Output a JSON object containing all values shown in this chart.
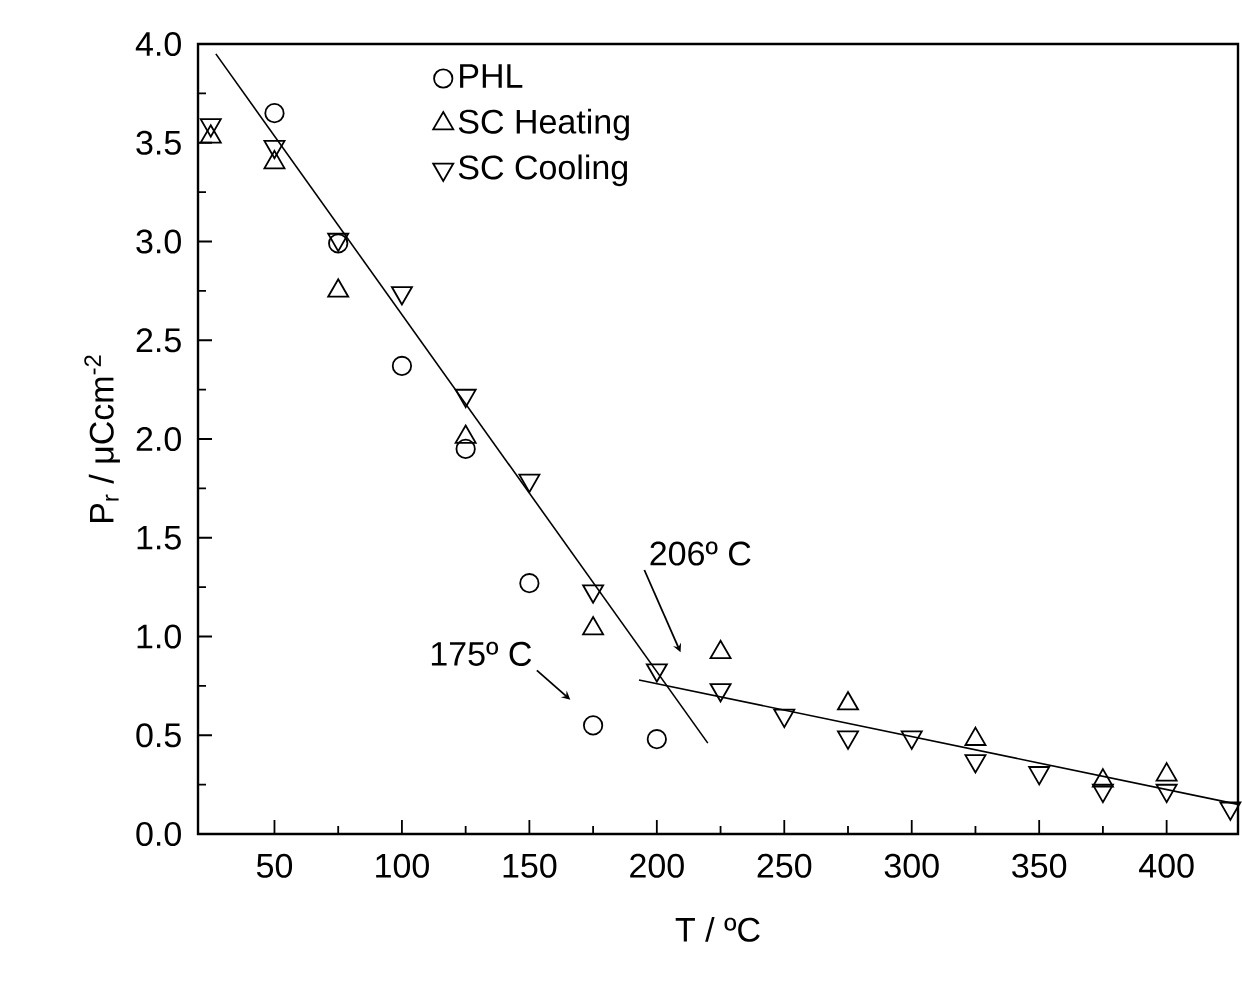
{
  "chart_data": {
    "type": "scatter",
    "xlabel": "T / ºC",
    "ylabel": "P$_{r}$ / μCcm$^{-2}$",
    "xlim": [
      20,
      428
    ],
    "xticks": [
      50,
      100,
      150,
      200,
      250,
      300,
      350,
      400
    ],
    "ylim": [
      0,
      4
    ],
    "yticks": [
      {
        "value": 0,
        "label": "0.0"
      },
      {
        "value": 0.5,
        "label": "0.5"
      },
      {
        "value": 1,
        "label": "1.0"
      },
      {
        "value": 1.5,
        "label": "1.5"
      },
      {
        "value": 2,
        "label": "2.0"
      },
      {
        "value": 2.5,
        "label": "2.5"
      },
      {
        "value": 3,
        "label": "3.0"
      },
      {
        "value": 3.5,
        "label": "3.5"
      },
      {
        "value": 4,
        "label": "4.0"
      }
    ],
    "legend": "top",
    "grid": false,
    "series": [
      {
        "name": "PHL",
        "color": "#000000",
        "marker": "circle",
        "x": [
          50,
          75,
          100,
          125,
          150,
          175,
          200
        ],
        "values": [
          3.65,
          2.99,
          2.37,
          1.95,
          1.27,
          0.55,
          0.48
        ]
      },
      {
        "name": "SC Heating",
        "color": "#000000",
        "marker": "triangle",
        "x": [
          25,
          50,
          75,
          125,
          175,
          225,
          275,
          325,
          375,
          400
        ],
        "values": [
          3.53,
          3.4,
          2.75,
          2.01,
          1.04,
          0.92,
          0.66,
          0.48,
          0.27,
          0.3
        ]
      },
      {
        "name": "SC Cooling",
        "color": "#000000",
        "marker": "triangle_down",
        "x": [
          25,
          50,
          75,
          100,
          125,
          150,
          175,
          200,
          225,
          250,
          275,
          300,
          325,
          350,
          375,
          400,
          425
        ],
        "values": [
          3.59,
          3.48,
          3.01,
          2.74,
          2.22,
          1.79,
          1.23,
          0.83,
          0.73,
          0.6,
          0.49,
          0.49,
          0.37,
          0.31,
          0.22,
          0.22,
          0.13
        ]
      },
      {
        "type": "line",
        "color": "#000000",
        "marker": "none",
        "x": [
          27,
          220
        ],
        "values": [
          3.95,
          0.46
        ]
      },
      {
        "type": "line",
        "color": "#000000",
        "marker": "none",
        "x": [
          193,
          428
        ],
        "values": [
          0.78,
          0.15
        ]
      }
    ],
    "annotations": [
      "175º C",
      "206º C"
    ]
  }
}
